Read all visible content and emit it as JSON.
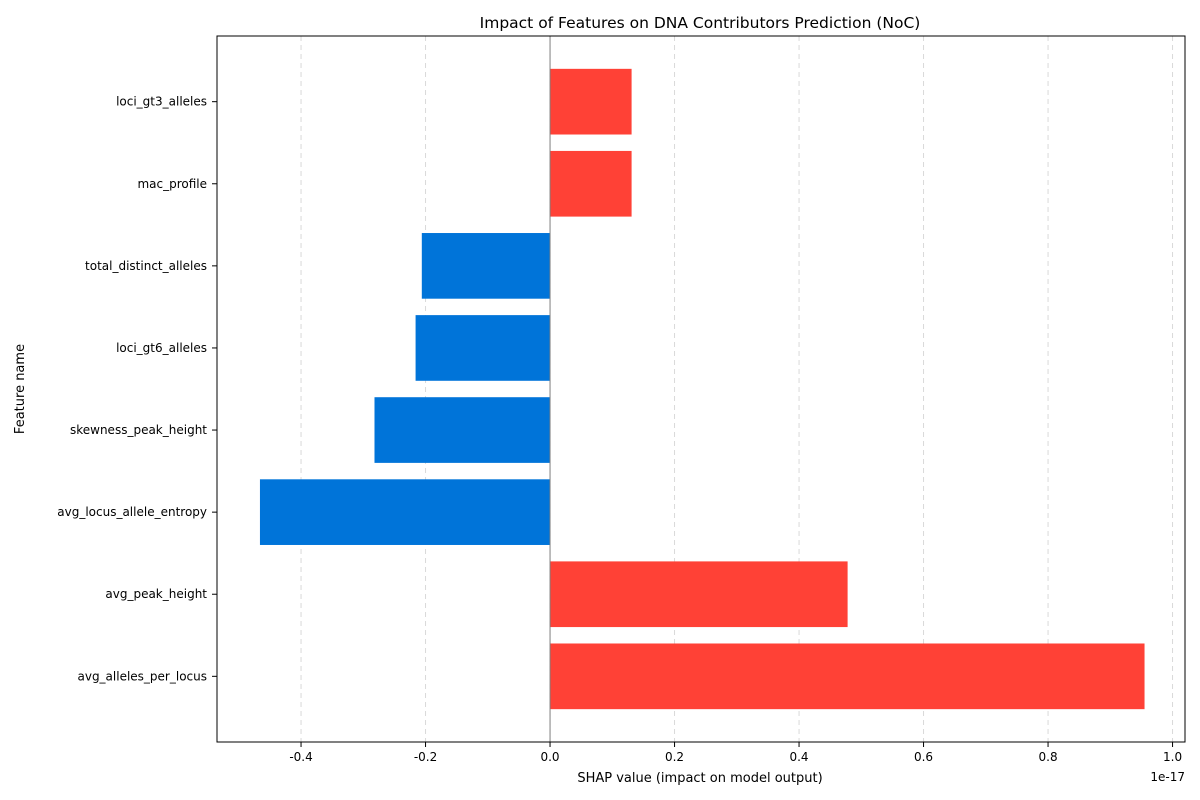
{
  "chart_data": {
    "type": "bar",
    "orientation": "horizontal",
    "title": "Impact of Features on DNA Contributors Prediction (NoC)",
    "xlabel": "SHAP value (impact on model output)",
    "ylabel": "Feature name",
    "x_offset_label": "1e-17",
    "xlim": [
      -0.535,
      1.02
    ],
    "x_ticks": [
      -0.4,
      -0.2,
      0.0,
      0.2,
      0.4,
      0.6,
      0.8,
      1.0
    ],
    "x_tick_labels": [
      "-0.4",
      "-0.2",
      "0.0",
      "0.2",
      "0.4",
      "0.6",
      "0.8",
      "1.0"
    ],
    "categories": [
      "avg_alleles_per_locus",
      "avg_peak_height",
      "avg_locus_allele_entropy",
      "skewness_peak_height",
      "loci_gt6_alleles",
      "total_distinct_alleles",
      "mac_profile",
      "loci_gt3_alleles"
    ],
    "values": [
      0.955,
      0.478,
      -0.466,
      -0.282,
      -0.216,
      -0.206,
      0.131,
      0.131
    ],
    "grid": "x-dashed",
    "colors": {
      "positive": "#FF4136",
      "negative": "#0074D9",
      "zero_line": "#808080",
      "grid": "#d9d9d9"
    }
  }
}
